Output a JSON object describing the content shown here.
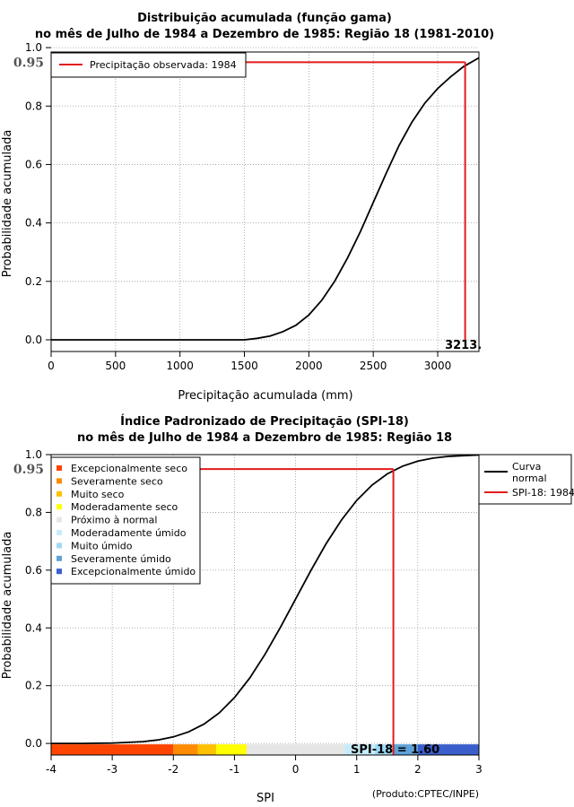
{
  "chart_data": [
    {
      "type": "line",
      "title_line1": "Distribuição acumulada (função gama)",
      "title_line2": "no mês de Julho de 1984 a Dezembro de 1985: Região 18 (1981-2010)",
      "xlabel": "Precipitação acumulada (mm)",
      "ylabel": "Probabilidade acumulada",
      "xlim": [
        0,
        3320
      ],
      "ylim": [
        -0.04,
        0.985
      ],
      "xticks": [
        0,
        500,
        1000,
        1500,
        2000,
        2500,
        3000
      ],
      "xtick_labels": [
        "0",
        "500",
        "1000",
        "1500",
        "2000",
        "2500",
        "3000"
      ],
      "yticks": [
        0.0,
        0.2,
        0.4,
        0.6,
        0.8,
        1.0
      ],
      "ytick_labels": [
        "0.0",
        "0.2",
        "0.4",
        "0.6",
        "0.8",
        "1.0"
      ],
      "grid": true,
      "legend_position": "top-left",
      "legend": [
        {
          "label": "Precipitação observada: 1984",
          "color": "#e31a1c"
        }
      ],
      "series": [
        {
          "name": "Gama acumulada",
          "color": "#000000",
          "x": [
            0,
            500,
            1000,
            1500,
            1600,
            1700,
            1800,
            1900,
            2000,
            2100,
            2200,
            2300,
            2400,
            2500,
            2600,
            2700,
            2800,
            2900,
            3000,
            3100,
            3200,
            3320
          ],
          "y": [
            0.0,
            0.0,
            0.0,
            0.0,
            0.005,
            0.013,
            0.028,
            0.05,
            0.085,
            0.135,
            0.2,
            0.28,
            0.37,
            0.47,
            0.57,
            0.665,
            0.745,
            0.81,
            0.86,
            0.9,
            0.935,
            0.965
          ]
        }
      ],
      "observed_value": 3213,
      "observed_label": "3213.",
      "probability": 0.95,
      "probability_label": "0.95"
    },
    {
      "type": "line",
      "title_line1": "Índice Padronizado de Precipitação (SPI-18)",
      "title_line2": "no mês de Julho de 1984 a Dezembro de 1985: Região 18",
      "xlabel": "SPI",
      "ylabel": "Probabilidade acumulada",
      "xlim": [
        -4,
        3
      ],
      "ylim": [
        -0.04,
        1.0
      ],
      "xticks": [
        -4,
        -3,
        -2,
        -1,
        0,
        1,
        2,
        3
      ],
      "xtick_labels": [
        "-4",
        "-3",
        "-2",
        "-1",
        "0",
        "1",
        "2",
        "3"
      ],
      "yticks": [
        0.0,
        0.2,
        0.4,
        0.6,
        0.8,
        1.0
      ],
      "ytick_labels": [
        "0.0",
        "0.2",
        "0.4",
        "0.6",
        "0.8",
        "1.0"
      ],
      "grid": true,
      "legend_position": "top-left",
      "category_legend": [
        {
          "label": "Excepcionalmente seco",
          "color": "#ff4500"
        },
        {
          "label": "Severamente seco",
          "color": "#ff8c00"
        },
        {
          "label": "Muito seco",
          "color": "#ffc000"
        },
        {
          "label": "Moderadamente seco",
          "color": "#ffff00"
        },
        {
          "label": "Próximo à normal",
          "color": "#e6e6e6"
        },
        {
          "label": "Moderadamente úmido",
          "color": "#c6ecf9"
        },
        {
          "label": "Muito úmido",
          "color": "#9fd8f5"
        },
        {
          "label": "Severamente úmido",
          "color": "#5fa3d8"
        },
        {
          "label": "Excepcionalmente úmido",
          "color": "#3a5fcd"
        }
      ],
      "side_legend_position": "outside-right",
      "side_legend": [
        {
          "label_line1": "Curva",
          "label_line2": "normal",
          "color": "#000000"
        },
        {
          "label_line1": "SPI-18: 1984",
          "label_line2": "",
          "color": "#e31a1c"
        }
      ],
      "color_bar": [
        {
          "from": -4.0,
          "to": -2.0,
          "color": "#ff4500"
        },
        {
          "from": -2.0,
          "to": -1.6,
          "color": "#ff8c00"
        },
        {
          "from": -1.6,
          "to": -1.3,
          "color": "#ffc000"
        },
        {
          "from": -1.3,
          "to": -0.8,
          "color": "#ffff00"
        },
        {
          "from": -0.8,
          "to": 0.8,
          "color": "#e6e6e6"
        },
        {
          "from": 0.8,
          "to": 1.3,
          "color": "#c6ecf9"
        },
        {
          "from": 1.3,
          "to": 1.6,
          "color": "#9fd8f5"
        },
        {
          "from": 1.6,
          "to": 2.0,
          "color": "#5fa3d8"
        },
        {
          "from": 2.0,
          "to": 3.0,
          "color": "#3a5fcd"
        }
      ],
      "series": [
        {
          "name": "Curva normal",
          "color": "#000000",
          "x": [
            -4,
            -3.5,
            -3,
            -2.5,
            -2.25,
            -2,
            -1.75,
            -1.5,
            -1.25,
            -1,
            -0.75,
            -0.5,
            -0.25,
            0,
            0.25,
            0.5,
            0.75,
            1,
            1.25,
            1.5,
            1.75,
            2,
            2.25,
            2.5,
            3
          ],
          "y": [
            0.0,
            0.0002,
            0.0013,
            0.0062,
            0.0122,
            0.0228,
            0.0401,
            0.0668,
            0.1056,
            0.1587,
            0.2266,
            0.3085,
            0.4013,
            0.5,
            0.5987,
            0.6915,
            0.7734,
            0.8413,
            0.8944,
            0.9332,
            0.9599,
            0.9772,
            0.9878,
            0.9938,
            0.9987
          ]
        }
      ],
      "spi_value": 1.6,
      "spi_label": "SPI-18 = 1.60",
      "probability": 0.95,
      "probability_label": "0.95",
      "credit": "(Produto:CPTEC/INPE)"
    }
  ]
}
